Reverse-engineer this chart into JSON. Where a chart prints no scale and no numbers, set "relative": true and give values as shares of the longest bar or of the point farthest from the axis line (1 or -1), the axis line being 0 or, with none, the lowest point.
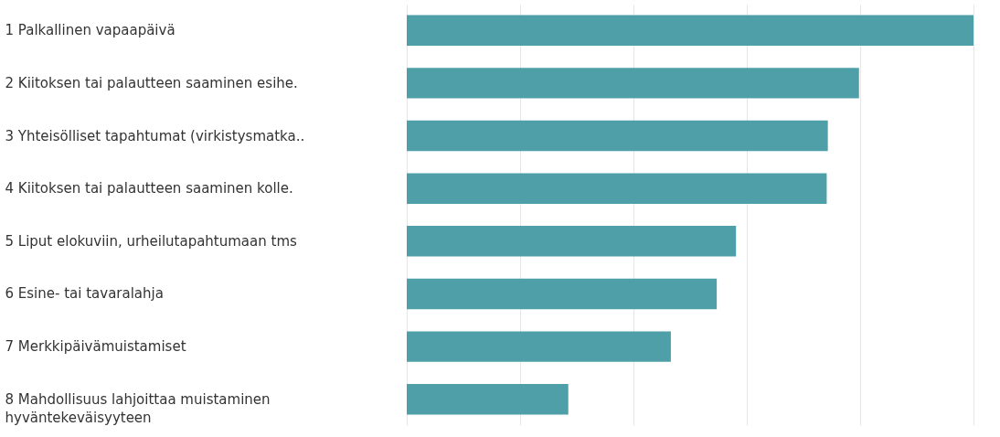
{
  "chart_data": {
    "type": "bar",
    "orientation": "horizontal",
    "relative": true,
    "grid": true,
    "categories": [
      "1 Palkallinen vapaapäivä",
      "2 Kiitoksen tai palautteen saaminen esihe.",
      "3 Yhteisölliset tapahtumat (virkistysmatka..",
      "4 Kiitoksen tai palautteen saaminen kolle.",
      "5 Liput elokuviin, urheilutapahtumaan tms",
      "6 Esine- tai tavaralahja",
      "7 Merkkipäivämuistamiset",
      "8 Mahdollisuus lahjoittaa muistaminen hyväntekeväisyyteen"
    ],
    "values": [
      1,
      0.798,
      0.743,
      0.741,
      0.581,
      0.547,
      0.466,
      0.285
    ],
    "color": "#4e9fa8"
  }
}
